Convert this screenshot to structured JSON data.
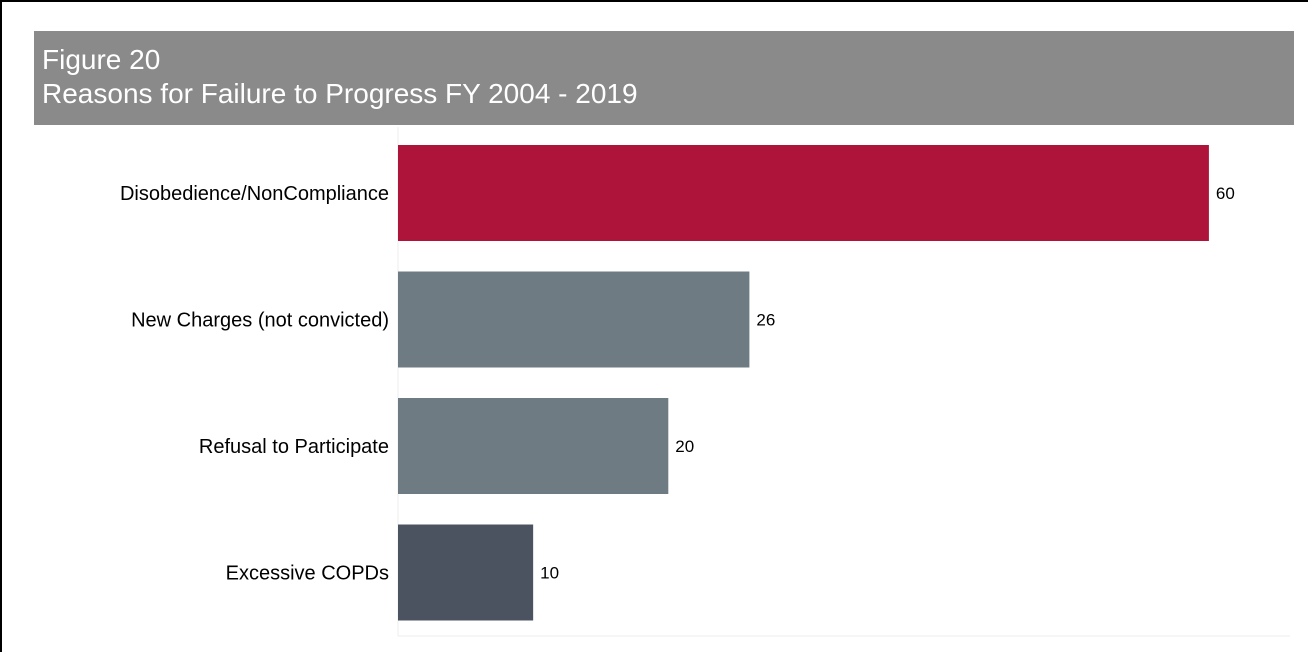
{
  "figure": {
    "label": "Figure 20",
    "title": "Reasons for Failure to Progress FY 2004 - 2019"
  },
  "chart_data": {
    "type": "bar",
    "orientation": "horizontal",
    "title": "Reasons for Failure to Progress FY 2004 - 2019",
    "categories": [
      "Disobedience/NonCompliance",
      "New Charges (not convicted)",
      "Refusal to Participate",
      "Excessive COPDs"
    ],
    "values": [
      60,
      26,
      20,
      10
    ],
    "colors": [
      "#ae1439",
      "#6f7b83",
      "#6f7b83",
      "#4c5360"
    ],
    "xlim": [
      0,
      66
    ],
    "xlabel": "",
    "ylabel": "",
    "grid": false,
    "legend": "none",
    "data_labels": true
  }
}
